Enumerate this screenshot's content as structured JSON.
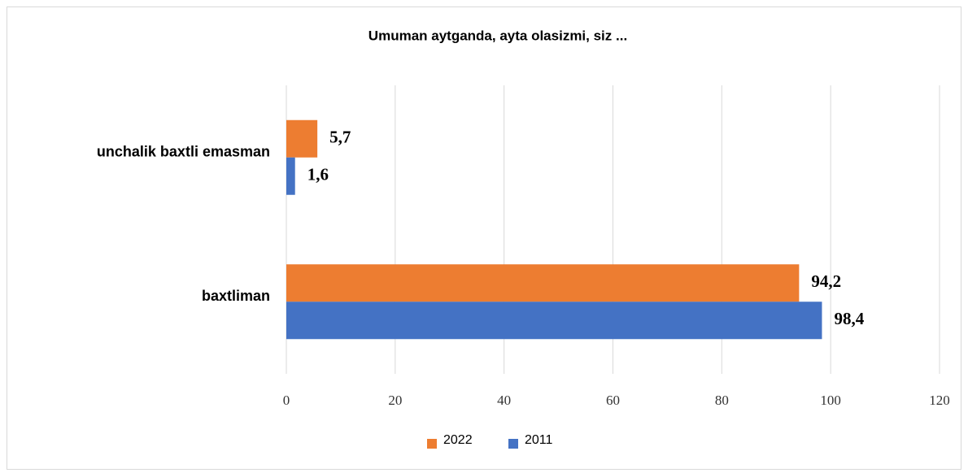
{
  "chart_data": {
    "type": "hbar",
    "title": "Umuman aytganda, ayta olasizmi, siz ...",
    "categories": [
      "unchalik baxtli emasman",
      "baxtliman"
    ],
    "series": [
      {
        "name": "2022",
        "color": "#ed7d31",
        "values": [
          5.7,
          94.2
        ],
        "value_labels": [
          "5,7",
          "94,2"
        ]
      },
      {
        "name": "2011",
        "color": "#4472c4",
        "values": [
          1.6,
          98.4
        ],
        "value_labels": [
          "1,6",
          "98,4"
        ]
      }
    ],
    "xlim": [
      0,
      120
    ],
    "xticks": [
      0,
      20,
      40,
      60,
      80,
      100,
      120
    ],
    "grid": true,
    "legend": "bottom"
  }
}
